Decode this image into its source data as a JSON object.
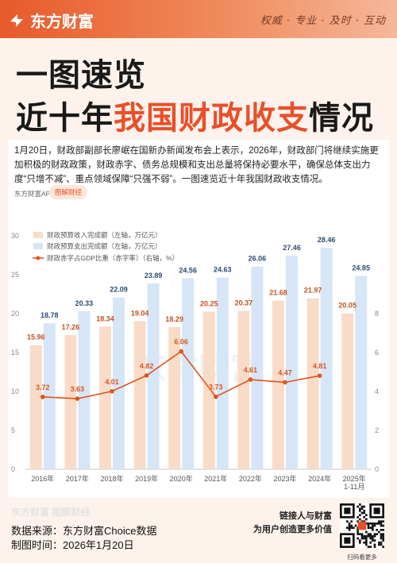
{
  "header": {
    "brand": "东方财富",
    "slogan": "权威 · 专业 · 及时 · 互动"
  },
  "title": {
    "line1": "一图速览",
    "line2_prefix": "近十年",
    "line2_highlight": "我国财政收支",
    "line2_suffix": "情况"
  },
  "intro": "1月20日，财政部副部长廖岷在国新办新闻发布会上表示，2026年，财政部门将继续实施更加积极的财政政策，财政赤字、债务总规模和支出总量将保持必要水平，确保总体支出力度“只增不减”、重点领域保障“只强不弱”。一图速览近十年我国财政收支情况。",
  "tags": {
    "app": "东方财富APP",
    "series": "图解财经"
  },
  "footer": {
    "brand": "东方财富 图解财经",
    "source": "数据来源：东方财富Choice数据",
    "date": "制图时间：2026年1月20日",
    "cta1": "链接人与财富",
    "cta2": "为用户创造更多价值",
    "qr_caption": "扫码看更多"
  },
  "colors": {
    "accent": "#e8502a",
    "revenue_bar": "#f8dcc8",
    "expenditure_bar": "#d6e6f7",
    "line": "#e0541c"
  },
  "chart_data": {
    "type": "bar",
    "categories": [
      "2016年",
      "2017年",
      "2018年",
      "2019年",
      "2020年",
      "2021年",
      "2022年",
      "2023年",
      "2024年",
      "2025年\n1-11月"
    ],
    "series": [
      {
        "name": "财政预算收入完成额（左轴，万亿元）",
        "type": "bar",
        "axis": "left",
        "values": [
          15.96,
          17.26,
          18.34,
          19.04,
          18.29,
          20.25,
          20.37,
          21.68,
          21.97,
          20.05
        ]
      },
      {
        "name": "财政预算支出完成额（左轴，万亿元）",
        "type": "bar",
        "axis": "left",
        "values": [
          18.78,
          20.33,
          22.09,
          23.89,
          24.56,
          24.63,
          26.06,
          27.46,
          28.46,
          24.85
        ]
      },
      {
        "name": "财政赤字占GDP比重（赤字率）（右轴，%）",
        "type": "line",
        "axis": "right",
        "values": [
          3.72,
          3.63,
          4.01,
          4.82,
          6.06,
          3.73,
          4.61,
          4.47,
          4.81,
          null
        ]
      }
    ],
    "left_ticks": [
      "0",
      "5",
      "10",
      "15",
      "20",
      "25",
      "30"
    ],
    "right_ticks": [
      "0",
      "2",
      "4",
      "6",
      "8"
    ],
    "ylim_left": [
      0,
      30
    ],
    "ylim_right": [
      0,
      12
    ],
    "grid": false,
    "legend": "top-left",
    "watermark": "东方财富"
  }
}
